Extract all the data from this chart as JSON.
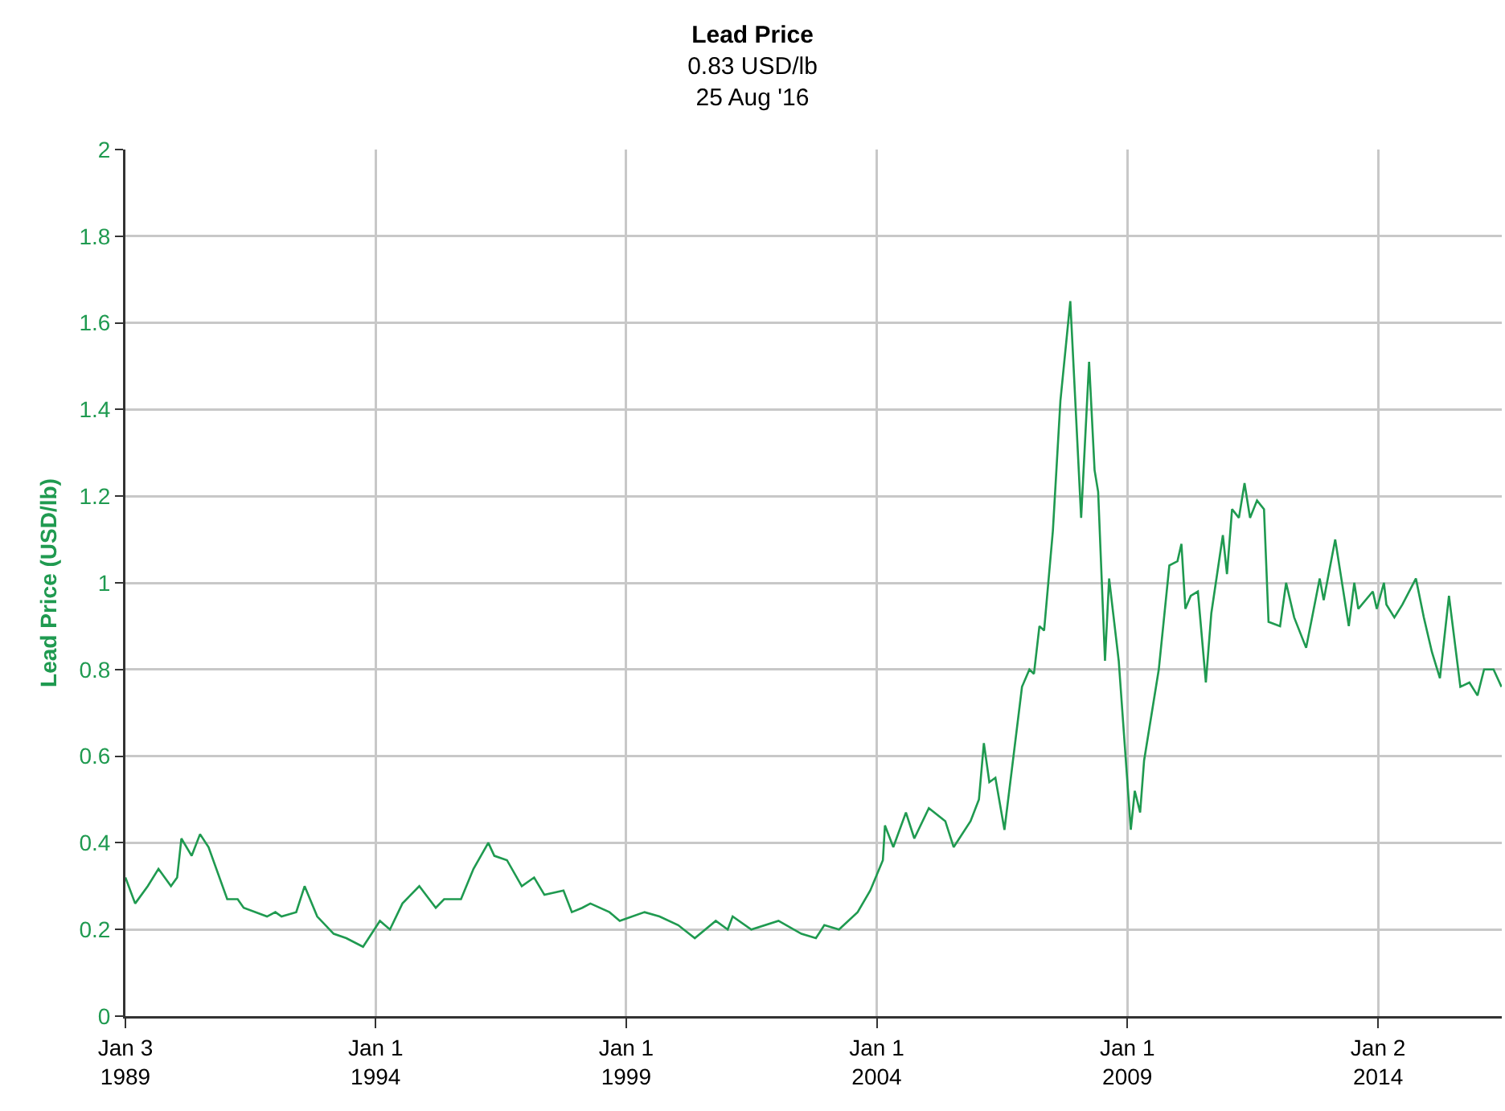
{
  "chart_data": {
    "type": "line",
    "title": "Lead Price",
    "subtitle": "0.83 USD/lb\n25 Aug '16",
    "ylabel": "Lead Price (USD/lb)",
    "x": [
      "1989-01-03",
      "1989-03-15",
      "1989-06-15",
      "1989-09-01",
      "1989-12-01",
      "1990-01-15",
      "1990-02-15",
      "1990-05-01",
      "1990-07-01",
      "1990-09-01",
      "1991-01-15",
      "1991-04-01",
      "1991-05-15",
      "1991-11-01",
      "1992-01-01",
      "1992-02-15",
      "1992-06-01",
      "1992-08-01",
      "1992-11-01",
      "1993-03-01",
      "1993-06-01",
      "1993-10-01",
      "1994-02-01",
      "1994-04-15",
      "1994-07-15",
      "1994-11-15",
      "1995-03-15",
      "1995-05-15",
      "1995-09-15",
      "1995-12-15",
      "1996-04-01",
      "1996-05-15",
      "1996-08-15",
      "1996-12-01",
      "1997-03-01",
      "1997-05-15",
      "1997-10-01",
      "1997-12-01",
      "1998-02-15",
      "1998-04-15",
      "1998-09-01",
      "1998-11-15",
      "1999-05-15",
      "1999-09-01",
      "2000-01-15",
      "2000-05-15",
      "2000-10-15",
      "2001-01-10",
      "2001-02-15",
      "2001-07-01",
      "2002-01-15",
      "2002-07-01",
      "2002-10-15",
      "2002-12-15",
      "2003-04-01",
      "2003-08-15",
      "2003-11-15",
      "2004-02-15",
      "2004-03-01",
      "2004-05-01",
      "2004-08-01",
      "2004-10-01",
      "2005-01-15",
      "2005-05-15",
      "2005-07-15",
      "2005-11-15",
      "2006-01-15",
      "2006-02-20",
      "2006-04-01",
      "2006-05-15",
      "2006-07-20",
      "2006-11-25",
      "2007-01-18",
      "2007-02-20",
      "2007-04-01",
      "2007-05-05",
      "2007-07-08",
      "2007-09-01",
      "2007-11-12",
      "2008-01-30",
      "2008-03-28",
      "2008-05-07",
      "2008-06-02",
      "2008-07-22",
      "2008-08-21",
      "2008-10-30",
      "2009-01-26",
      "2009-02-24",
      "2009-04-04",
      "2009-05-03",
      "2009-08-18",
      "2009-11-03",
      "2010-01-01",
      "2010-01-30",
      "2010-02-28",
      "2010-04-08",
      "2010-05-30",
      "2010-07-27",
      "2010-09-05",
      "2010-11-28",
      "2010-12-28",
      "2011-02-03",
      "2011-03-25",
      "2011-05-05",
      "2011-06-14",
      "2011-08-04",
      "2011-09-24",
      "2011-10-27",
      "2012-01-19",
      "2012-03-03",
      "2012-05-01",
      "2012-07-27",
      "2012-11-03",
      "2012-12-02",
      "2013-02-24",
      "2013-06-03",
      "2013-07-13",
      "2013-08-11",
      "2013-11-25",
      "2013-12-24",
      "2014-02-14",
      "2014-03-04",
      "2014-05-01",
      "2014-06-29",
      "2014-10-05",
      "2014-12-02",
      "2015-01-30",
      "2015-03-29",
      "2015-06-03",
      "2015-08-25",
      "2015-10-30",
      "2015-12-28",
      "2016-02-14",
      "2016-04-23",
      "2016-06-20"
    ],
    "series": [
      {
        "color": "#1f9a50",
        "values": [
          0.32,
          0.26,
          0.3,
          0.34,
          0.3,
          0.32,
          0.41,
          0.37,
          0.42,
          0.39,
          0.27,
          0.27,
          0.25,
          0.23,
          0.24,
          0.23,
          0.24,
          0.3,
          0.23,
          0.19,
          0.18,
          0.16,
          0.22,
          0.2,
          0.26,
          0.3,
          0.25,
          0.27,
          0.27,
          0.34,
          0.4,
          0.37,
          0.36,
          0.3,
          0.32,
          0.28,
          0.29,
          0.24,
          0.25,
          0.26,
          0.24,
          0.22,
          0.24,
          0.23,
          0.21,
          0.18,
          0.22,
          0.2,
          0.23,
          0.2,
          0.22,
          0.19,
          0.18,
          0.21,
          0.2,
          0.24,
          0.29,
          0.36,
          0.44,
          0.39,
          0.47,
          0.41,
          0.48,
          0.45,
          0.39,
          0.45,
          0.5,
          0.63,
          0.54,
          0.55,
          0.43,
          0.76,
          0.8,
          0.79,
          0.9,
          0.89,
          1.12,
          1.42,
          1.65,
          1.15,
          1.51,
          1.26,
          1.21,
          0.82,
          1.01,
          0.82,
          0.43,
          0.52,
          0.47,
          0.59,
          0.8,
          1.04,
          1.05,
          1.09,
          0.94,
          0.97,
          0.98,
          0.77,
          0.93,
          1.11,
          1.02,
          1.17,
          1.15,
          1.23,
          1.15,
          1.19,
          1.17,
          0.91,
          0.9,
          1.0,
          0.92,
          0.85,
          1.01,
          0.96,
          1.1,
          0.9,
          1.0,
          0.94,
          0.98,
          0.94,
          1.0,
          0.95,
          0.92,
          0.95,
          1.01,
          0.92,
          0.84,
          0.78,
          0.97,
          0.76,
          0.77,
          0.74,
          0.8,
          0.8,
          0.76
        ]
      }
    ],
    "xlim": [
      "1989-01-03",
      "2016-06-22"
    ],
    "xticks": [
      {
        "value": "1989-01-03",
        "label": "Jan 3\n1989"
      },
      {
        "value": "1994-01-01",
        "label": "Jan 1\n1994"
      },
      {
        "value": "1999-01-01",
        "label": "Jan 1\n1999"
      },
      {
        "value": "2004-01-01",
        "label": "Jan 1\n2004"
      },
      {
        "value": "2009-01-01",
        "label": "Jan 1\n2009"
      },
      {
        "value": "2014-01-02",
        "label": "Jan 2\n2014"
      }
    ],
    "ylim": [
      0,
      2
    ],
    "yticks": [
      0,
      0.2,
      0.4,
      0.6,
      0.8,
      1,
      1.2,
      1.4,
      1.6,
      1.8,
      2
    ],
    "grid": true,
    "marker": "none",
    "line_style": "solid"
  }
}
